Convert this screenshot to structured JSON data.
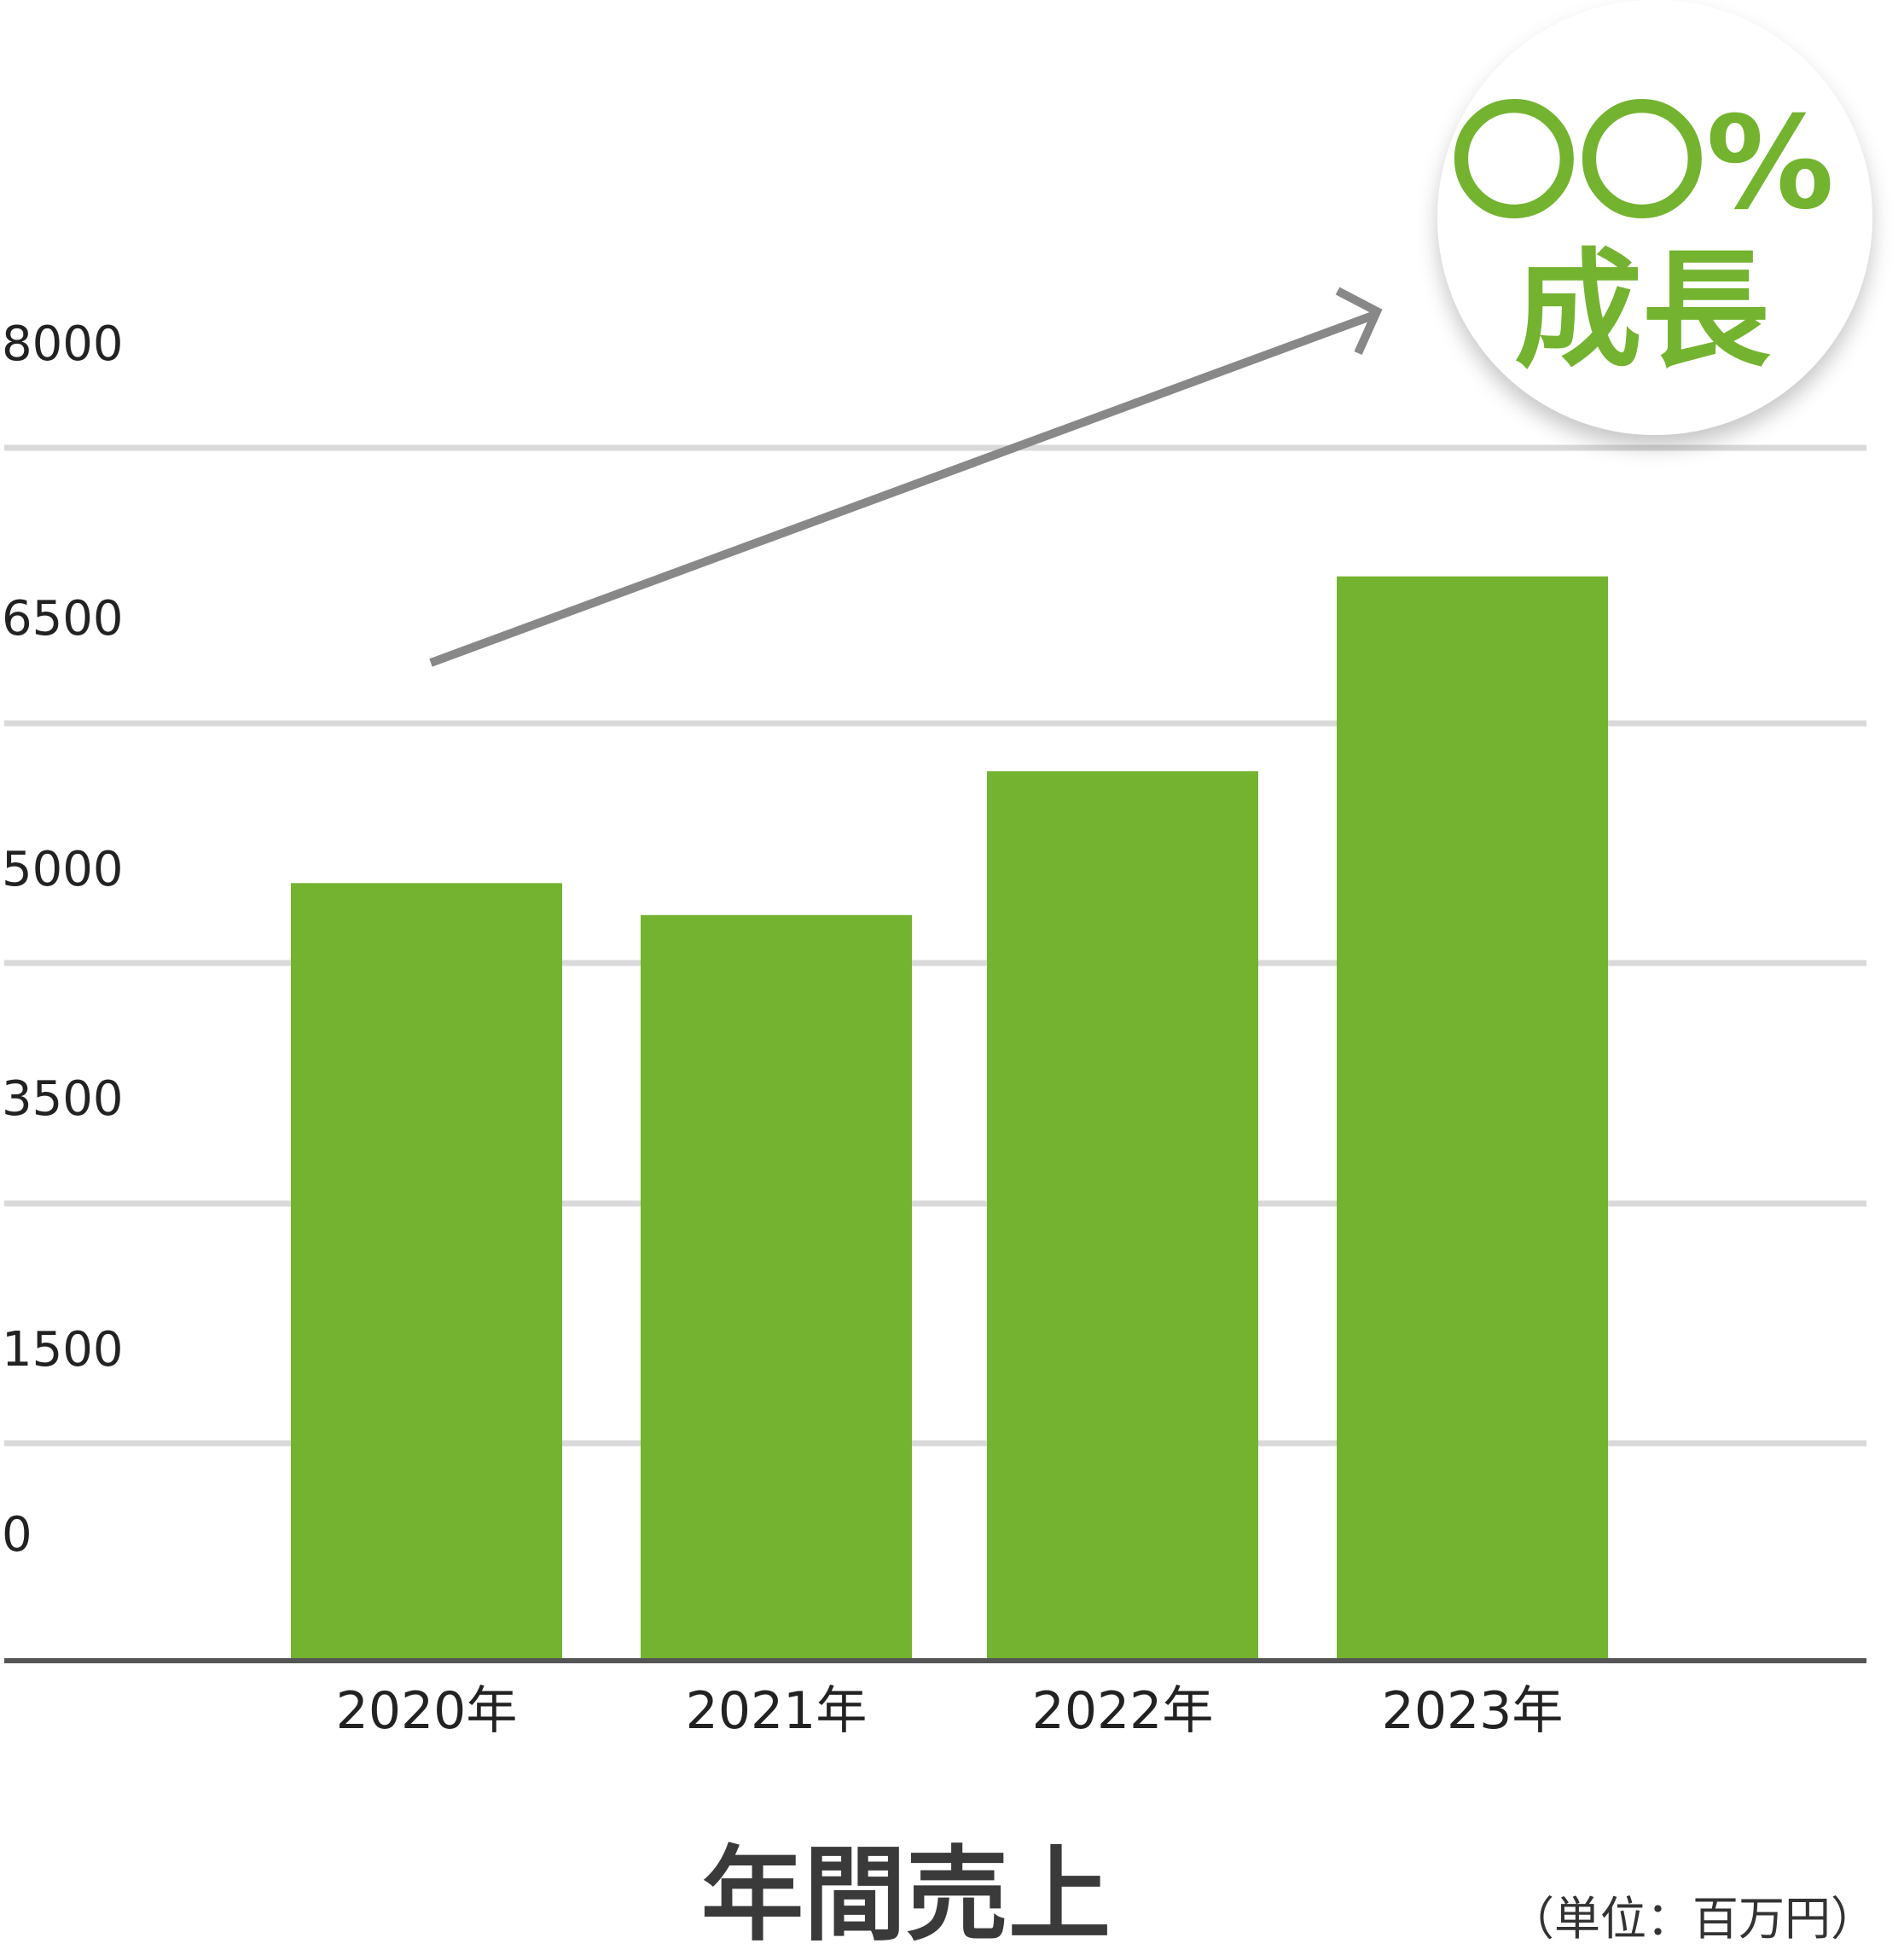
{
  "colors": {
    "bar": "#74B32F",
    "grid": "#D9D9D9",
    "axis": "#555555",
    "arrow": "#888888",
    "badge_text": "#74B32F",
    "badge_bg": "#FFFFFF"
  },
  "badge": {
    "line1": "〇〇%",
    "line2": "成長"
  },
  "chart_data": {
    "type": "bar",
    "title": "年間売上",
    "unit_label": "（単位：百万円）",
    "categories": [
      "2020年",
      "2021年",
      "2022年",
      "2023年"
    ],
    "values": [
      5500,
      5300,
      6200,
      7300
    ],
    "yticks": [
      {
        "label": "0",
        "value": 0
      },
      {
        "label": "1500",
        "value": 1500
      },
      {
        "label": "3500",
        "value": 3500
      },
      {
        "label": "5000",
        "value": 5000
      },
      {
        "label": "6500",
        "value": 6500
      },
      {
        "label": "8000",
        "value": 8000
      }
    ],
    "grid": true,
    "legend": "none"
  }
}
